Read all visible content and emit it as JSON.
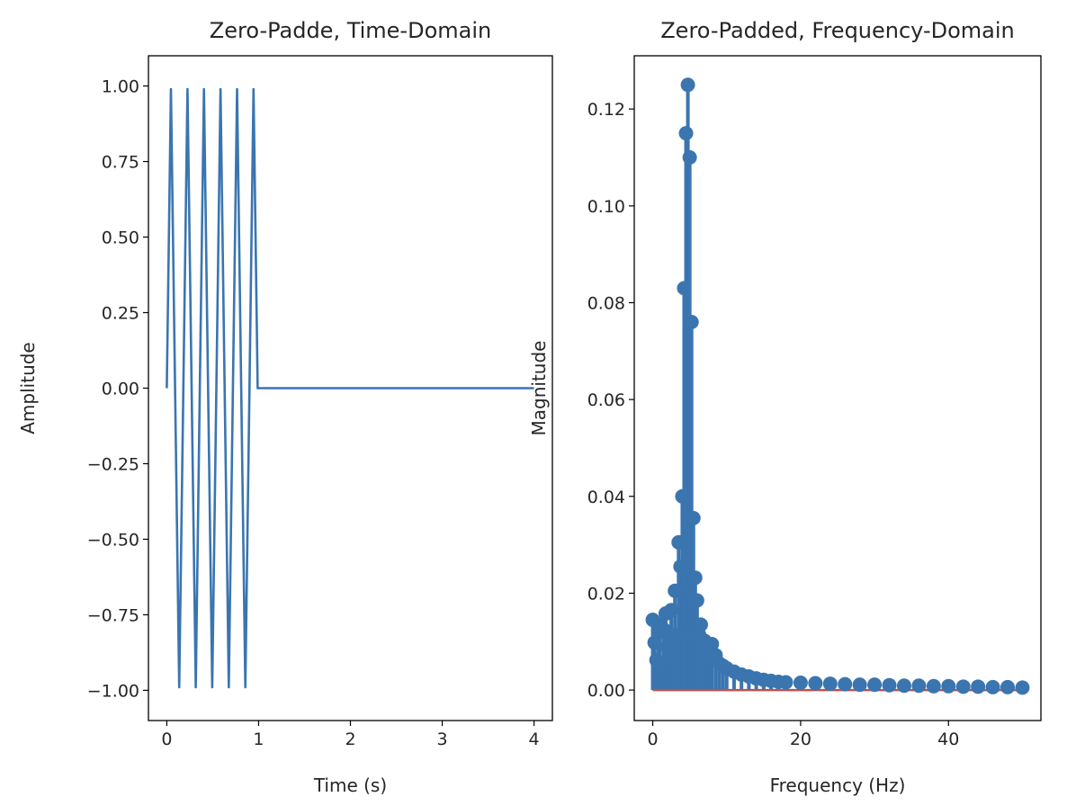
{
  "chart_data": [
    {
      "type": "line",
      "title": "Zero-Padde, Time-Domain",
      "xlabel": "Time (s)",
      "ylabel": "Amplitude",
      "xlim": [
        -0.2,
        4.2
      ],
      "ylim": [
        -1.1,
        1.1
      ],
      "xticks": [
        0,
        1,
        2,
        3,
        4
      ],
      "xtick_labels": [
        "0",
        "1",
        "2",
        "3",
        "4"
      ],
      "yticks": [
        1.0,
        0.75,
        0.5,
        0.25,
        0.0,
        -0.25,
        -0.5,
        -0.75,
        -1.0
      ],
      "ytick_labels": [
        "1.00",
        "0.75",
        "0.50",
        "0.25",
        "0.00",
        "−0.25",
        "−0.50",
        "−0.75",
        "−1.00"
      ],
      "grid": false,
      "color": "#3a75b0",
      "series": [
        {
          "x": [
            0.0,
            0.045,
            0.09,
            0.135,
            0.18,
            0.225,
            0.27,
            0.315,
            0.36,
            0.405,
            0.45,
            0.495,
            0.54,
            0.585,
            0.63,
            0.675,
            0.72,
            0.765,
            0.81,
            0.855,
            0.9,
            0.945,
            0.99,
            1.03,
            4.0
          ],
          "y": [
            0.0,
            0.99,
            0.0,
            -0.99,
            0.0,
            0.99,
            0.0,
            -0.99,
            0.0,
            0.99,
            0.0,
            -0.99,
            0.0,
            0.99,
            0.0,
            -0.99,
            0.0,
            0.99,
            0.0,
            -0.99,
            0.0,
            0.99,
            0.0,
            0.0,
            0.0
          ]
        }
      ]
    },
    {
      "type": "scatter",
      "title": "Zero-Padded, Frequency-Domain",
      "xlabel": "Frequency (Hz)",
      "ylabel": "Magnitude",
      "xlim": [
        -2.5,
        52.5
      ],
      "ylim": [
        -0.0063,
        0.131
      ],
      "xticks": [
        0,
        20,
        40
      ],
      "xtick_labels": [
        "0",
        "20",
        "40"
      ],
      "yticks": [
        0.12,
        0.1,
        0.08,
        0.06,
        0.04,
        0.02,
        0.0
      ],
      "ytick_labels": [
        "0.12",
        "0.10",
        "0.08",
        "0.06",
        "0.04",
        "0.02",
        "0.00"
      ],
      "grid": false,
      "marker_color": "#3a75b0",
      "baseline_color": "#c0504d",
      "series": [
        {
          "x": [
            0.0,
            0.25,
            0.5,
            0.75,
            1.0,
            1.25,
            1.5,
            1.75,
            2.0,
            2.25,
            2.5,
            2.75,
            3.0,
            3.25,
            3.5,
            3.75,
            4.0,
            4.25,
            4.5,
            4.75,
            5.0,
            5.25,
            5.5,
            5.75,
            6.0,
            6.25,
            6.5,
            6.75,
            7.0,
            7.25,
            7.5,
            7.75,
            8.0,
            8.5,
            9.0,
            9.5,
            10.0,
            11.0,
            12.0,
            13.0,
            14.0,
            15.0,
            16.0,
            17.0,
            18.0,
            20.0,
            22.0,
            24.0,
            26.0,
            28.0,
            30.0,
            32.0,
            34.0,
            36.0,
            38.0,
            40.0,
            42.0,
            44.0,
            46.0,
            48.0,
            50.0
          ],
          "y": [
            0.0145,
            0.0098,
            0.0062,
            0.0135,
            0.012,
            0.0052,
            0.0125,
            0.0158,
            0.009,
            0.0102,
            0.0165,
            0.0075,
            0.0205,
            0.0115,
            0.0305,
            0.0255,
            0.04,
            0.083,
            0.115,
            0.125,
            0.11,
            0.076,
            0.0355,
            0.0232,
            0.0185,
            0.0115,
            0.0135,
            0.0095,
            0.0102,
            0.0075,
            0.0092,
            0.0065,
            0.0095,
            0.0072,
            0.0055,
            0.005,
            0.0045,
            0.0038,
            0.0032,
            0.0028,
            0.0024,
            0.0021,
            0.0019,
            0.0017,
            0.0016,
            0.0015,
            0.0014,
            0.0013,
            0.0012,
            0.0011,
            0.0011,
            0.001,
            0.0009,
            0.0009,
            0.0008,
            0.0008,
            0.0007,
            0.0007,
            0.0006,
            0.0006,
            0.0005
          ]
        }
      ]
    }
  ]
}
